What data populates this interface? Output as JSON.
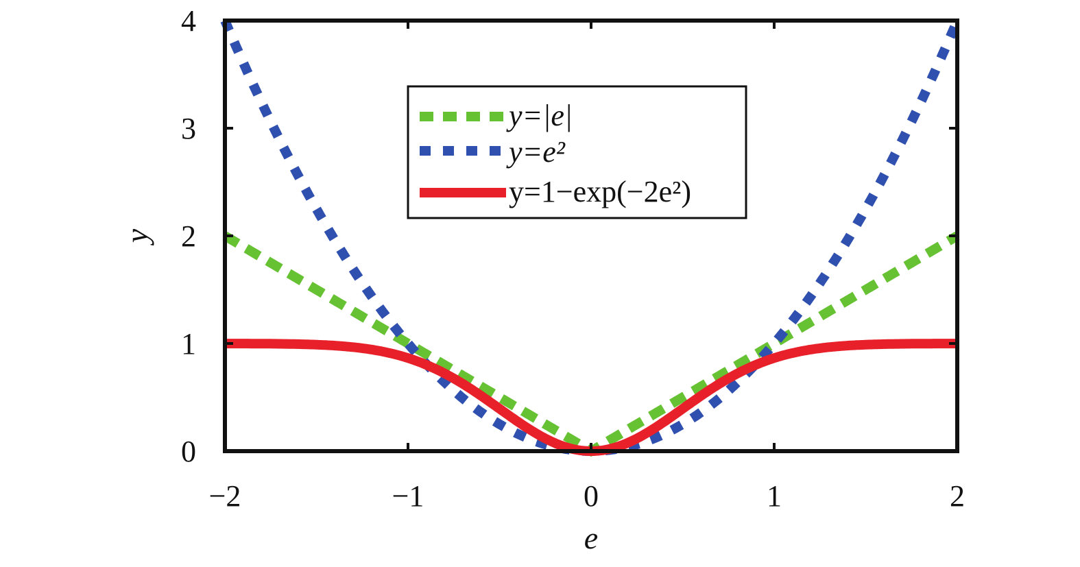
{
  "chart_data": {
    "type": "line",
    "xlabel": "e",
    "ylabel": "y",
    "xlim": [
      -2,
      2
    ],
    "ylim": [
      0,
      4
    ],
    "xticks": [
      -2,
      -1,
      0,
      1,
      2
    ],
    "xtick_labels": [
      "−2",
      "−1",
      "0",
      "1",
      "2"
    ],
    "yticks": [
      0,
      1,
      2,
      3,
      4
    ],
    "ytick_labels": [
      "0",
      "1",
      "2",
      "3",
      "4"
    ],
    "grid": false,
    "legend_placement": "top-center",
    "series": [
      {
        "name": "y=|e|",
        "formula": "abs",
        "style": "dashed",
        "color": "#66c133"
      },
      {
        "name": "y=e²",
        "formula": "square",
        "style": "dotted",
        "color": "#3050b0"
      },
      {
        "name": "y=1−exp(−2e²)",
        "formula": "one_minus_exp",
        "style": "solid",
        "color": "#e8202a"
      }
    ]
  }
}
